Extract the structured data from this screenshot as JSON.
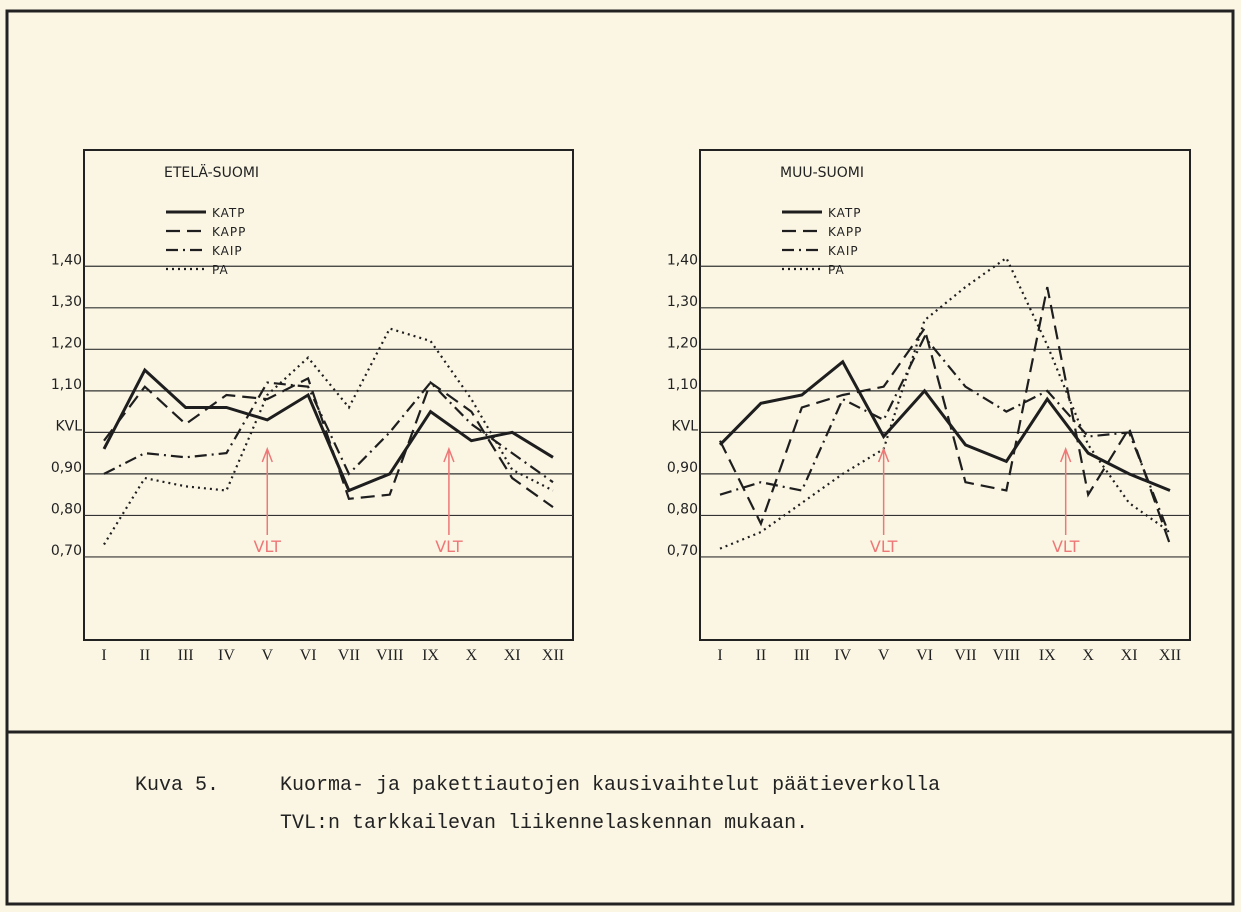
{
  "chart_data": [
    {
      "type": "line",
      "title": "ETELÄ-SUOMI",
      "categories": [
        "I",
        "II",
        "III",
        "IV",
        "V",
        "VI",
        "VII",
        "VIII",
        "IX",
        "X",
        "XI",
        "XII"
      ],
      "ylim": [
        0.5,
        1.68
      ],
      "yticks": [
        {
          "value": 0.7,
          "label": "0,70"
        },
        {
          "value": 0.8,
          "label": "0,80"
        },
        {
          "value": 0.9,
          "label": "0,90"
        },
        {
          "value": 1.0,
          "label": "KVL"
        },
        {
          "value": 1.1,
          "label": "1,10"
        },
        {
          "value": 1.2,
          "label": "1,20"
        },
        {
          "value": 1.3,
          "label": "1,30"
        },
        {
          "value": 1.4,
          "label": "1,40"
        }
      ],
      "grid": true,
      "annotations": [
        "VLT",
        "VLT"
      ],
      "series": [
        {
          "name": "KATP",
          "color": "#1e1e1e",
          "style": "solid",
          "values": [
            0.96,
            1.15,
            1.06,
            1.06,
            1.03,
            1.09,
            0.86,
            0.9,
            1.05,
            0.98,
            1.0,
            0.94
          ]
        },
        {
          "name": "KAPP",
          "color": "#1e1e1e",
          "style": "dashed",
          "values": [
            0.98,
            1.11,
            1.02,
            1.09,
            1.08,
            1.13,
            0.84,
            0.85,
            1.12,
            1.05,
            0.89,
            0.82
          ]
        },
        {
          "name": "KAIP",
          "color": "#1e1e1e",
          "style": "dashdot",
          "values": [
            0.9,
            0.95,
            0.94,
            0.95,
            1.12,
            1.11,
            0.9,
            1.0,
            1.12,
            1.02,
            0.95,
            0.88
          ]
        },
        {
          "name": "PA",
          "color": "#1e1e1e",
          "style": "dotted",
          "values": [
            0.73,
            0.89,
            0.87,
            0.86,
            1.09,
            1.18,
            1.06,
            1.25,
            1.22,
            1.08,
            0.91,
            0.86
          ]
        }
      ]
    },
    {
      "type": "line",
      "title": "MUU-SUOMI",
      "categories": [
        "I",
        "II",
        "III",
        "IV",
        "V",
        "VI",
        "VII",
        "VIII",
        "IX",
        "X",
        "XI",
        "XII"
      ],
      "ylim": [
        0.5,
        1.68
      ],
      "yticks": [
        {
          "value": 0.7,
          "label": "0,70"
        },
        {
          "value": 0.8,
          "label": "0,80"
        },
        {
          "value": 0.9,
          "label": "0,90"
        },
        {
          "value": 1.0,
          "label": "KVL"
        },
        {
          "value": 1.1,
          "label": "1,10"
        },
        {
          "value": 1.2,
          "label": "1,20"
        },
        {
          "value": 1.3,
          "label": "1,30"
        },
        {
          "value": 1.4,
          "label": "1,40"
        }
      ],
      "grid": true,
      "annotations": [
        "VLT",
        "VLT"
      ],
      "series": [
        {
          "name": "KATP",
          "color": "#1e1e1e",
          "style": "solid",
          "values": [
            0.97,
            1.07,
            1.09,
            1.17,
            0.99,
            1.1,
            0.97,
            0.93,
            1.08,
            0.95,
            0.9,
            0.86
          ]
        },
        {
          "name": "KAPP",
          "color": "#1e1e1e",
          "style": "dashed",
          "values": [
            0.98,
            0.78,
            1.06,
            1.09,
            1.11,
            1.25,
            0.88,
            0.86,
            1.35,
            0.85,
            1.01,
            0.73
          ]
        },
        {
          "name": "KAIP",
          "color": "#1e1e1e",
          "style": "dashdot",
          "values": [
            0.85,
            0.88,
            0.86,
            1.08,
            1.03,
            1.23,
            1.11,
            1.05,
            1.1,
            0.99,
            1.0,
            0.75
          ]
        },
        {
          "name": "PA",
          "color": "#1e1e1e",
          "style": "dotted",
          "values": [
            0.72,
            0.76,
            0.83,
            0.9,
            0.96,
            1.27,
            1.35,
            1.42,
            1.21,
            0.97,
            0.83,
            0.76
          ]
        }
      ]
    }
  ],
  "caption": {
    "label": "Kuva 5.",
    "lines": [
      "Kuorma- ja pakettiautojen kausivaihtelut päätieverkolla",
      "TVL:n tarkkailevan liikennelaskennan mukaan."
    ]
  }
}
